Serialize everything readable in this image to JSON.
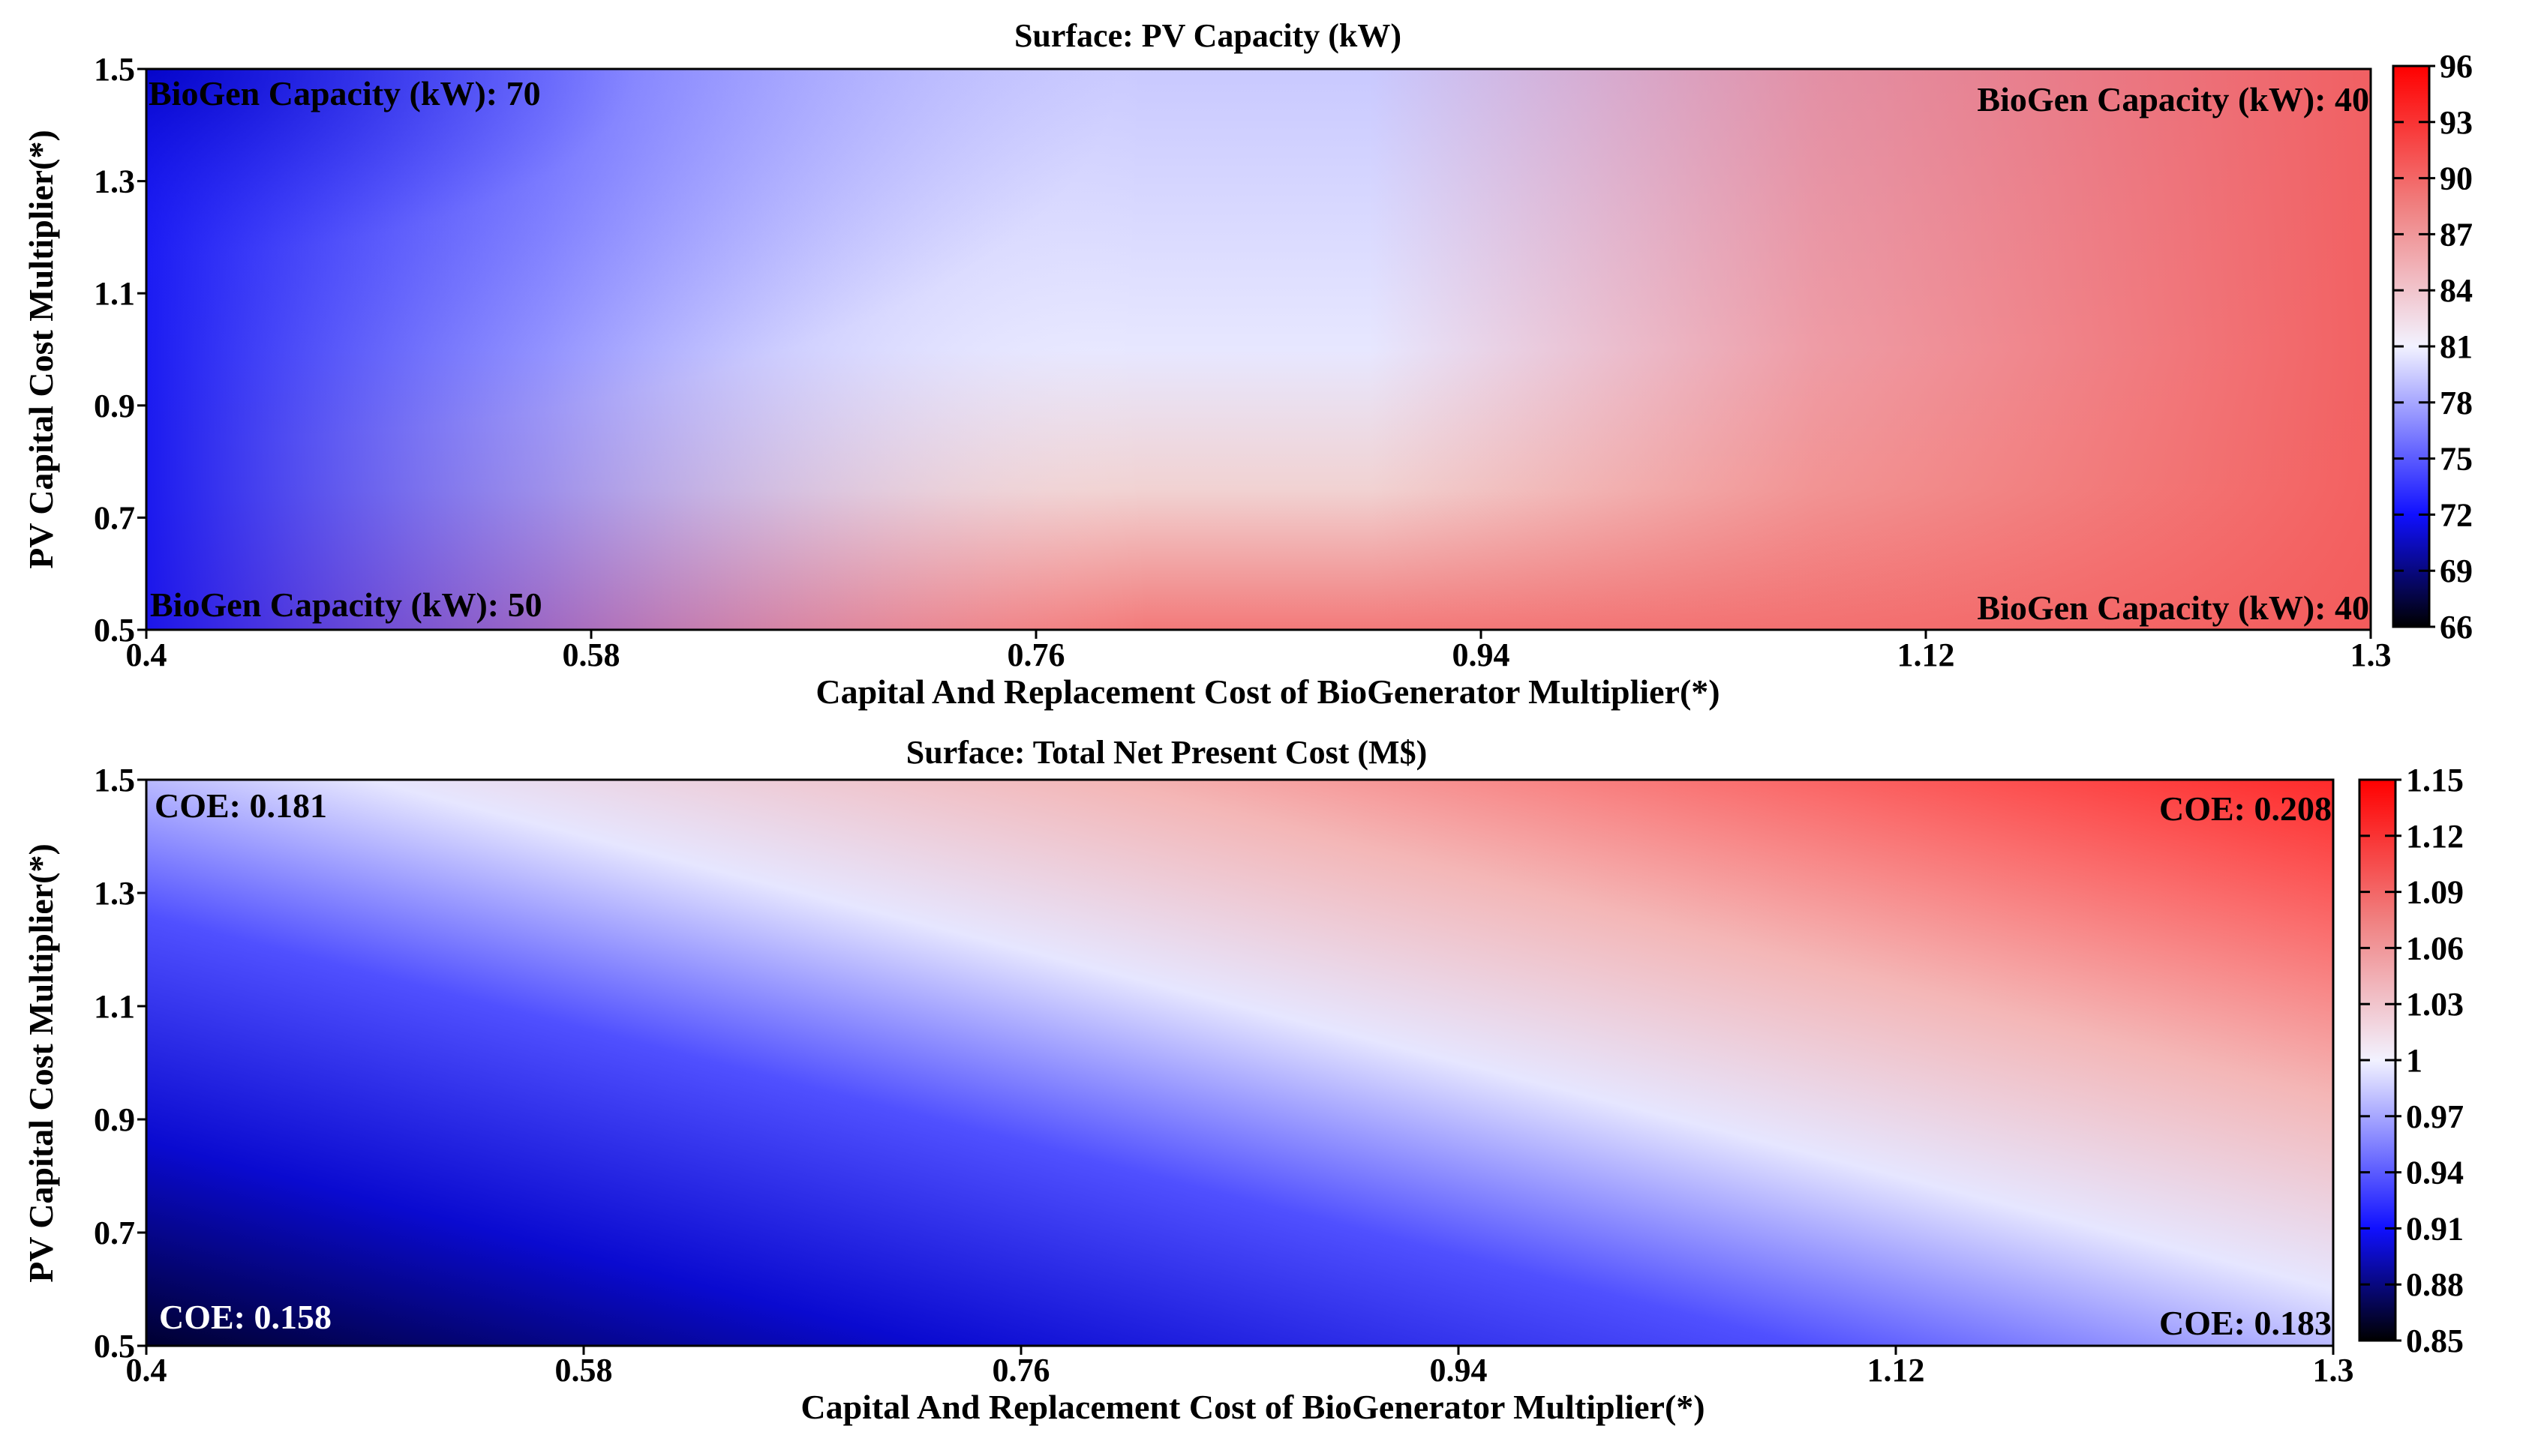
{
  "chart_data": [
    {
      "type": "heatmap",
      "title": "Surface: PV Capacity (kW)",
      "xlabel": "Capital And Replacement Cost of BioGenerator Multiplier(*)",
      "ylabel": "PV Capital Cost Multiplier(*)",
      "xlim": [
        0.4,
        1.3
      ],
      "ylim": [
        0.5,
        1.5
      ],
      "x_ticks": [
        "0.4",
        "0.58",
        "0.76",
        "0.94",
        "1.12",
        "1.3"
      ],
      "y_ticks": [
        "0.5",
        "0.7",
        "0.9",
        "1.1",
        "1.3",
        "1.5"
      ],
      "colorbar": {
        "min": 66,
        "max": 96,
        "mid": 81,
        "ticks": [
          "66",
          "69",
          "72",
          "75",
          "78",
          "81",
          "84",
          "87",
          "90",
          "93",
          "96"
        ]
      },
      "annotations": [
        {
          "text": "BioGen Capacity (kW): 70",
          "corner": "top-left",
          "color": "#000000"
        },
        {
          "text": "BioGen Capacity (kW): 40",
          "corner": "top-right",
          "color": "#000000"
        },
        {
          "text": "BioGen Capacity (kW): 50",
          "corner": "bottom-left",
          "color": "#000000"
        },
        {
          "text": "BioGen Capacity (kW): 40",
          "corner": "bottom-right",
          "color": "#000000"
        }
      ],
      "colors": {
        "low": "#000000",
        "low_mid": "#1010ff",
        "mid": "#f2f2ff",
        "high_mid": "#f08080",
        "high": "#ff0000"
      }
    },
    {
      "type": "heatmap",
      "title": "Surface: Total Net Present Cost (M$)",
      "xlabel": "Capital And Replacement Cost of BioGenerator Multiplier(*)",
      "ylabel": "PV Capital Cost Multiplier(*)",
      "xlim": [
        0.4,
        1.3
      ],
      "ylim": [
        0.5,
        1.5
      ],
      "x_ticks": [
        "0.4",
        "0.58",
        "0.76",
        "0.94",
        "1.12",
        "1.3"
      ],
      "y_ticks": [
        "0.5",
        "0.7",
        "0.9",
        "1.1",
        "1.3",
        "1.5"
      ],
      "colorbar": {
        "min": 0.85,
        "max": 1.15,
        "mid": 1.0,
        "ticks": [
          "0.85",
          "0.88",
          "0.91",
          "0.94",
          "0.97",
          "1",
          "1.03",
          "1.06",
          "1.09",
          "1.12",
          "1.15"
        ]
      },
      "annotations": [
        {
          "text": "COE: 0.181",
          "corner": "top-left",
          "color": "#000000"
        },
        {
          "text": "COE: 0.208",
          "corner": "top-right",
          "color": "#000000"
        },
        {
          "text": "COE: 0.158",
          "corner": "bottom-left",
          "color": "#ffffff"
        },
        {
          "text": "COE: 0.183",
          "corner": "bottom-right",
          "color": "#000000"
        }
      ],
      "colors": {
        "low": "#000000",
        "low_mid": "#1010ff",
        "mid": "#f2f2ff",
        "high_mid": "#f08080",
        "high": "#ff0000"
      }
    }
  ]
}
